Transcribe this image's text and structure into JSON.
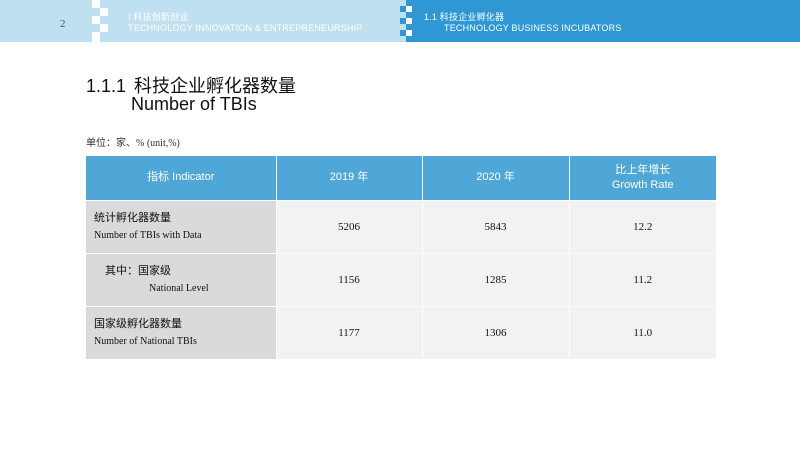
{
  "header": {
    "page_number": "2",
    "left_cn": "I  科技创新创业",
    "left_en": "TECHNOLOGY INNOVATION & ENTREPRENEURSHIP",
    "right_cn": "1.1  科技企业孵化器",
    "right_en": "TECHNOLOGY BUSINESS INCUBATORS",
    "colors": {
      "light_blue": "#bfe0f1",
      "dark_blue": "#2f97d3"
    }
  },
  "title": {
    "number": "1.1.1",
    "cn": "科技企业孵化器数量",
    "en": "Number of TBIs"
  },
  "unit_note": "单位：家、%  (unit,%)",
  "table": {
    "header_color": "#4fa7d7",
    "columns": [
      {
        "line1": "指标 Indicator",
        "line2": ""
      },
      {
        "line1": "2019 年",
        "line2": ""
      },
      {
        "line1": "2020 年",
        "line2": ""
      },
      {
        "line1": "比上年增长",
        "line2": "Growth Rate"
      }
    ],
    "rows": [
      {
        "cn": "统计孵化器数量",
        "en": "Number of TBIs with Data",
        "v2019": "5206",
        "v2020": "5843",
        "growth": "12.2"
      },
      {
        "cn": "其中：国家级",
        "en": "National Level",
        "v2019": "1156",
        "v2020": "1285",
        "growth": "11.2"
      },
      {
        "cn": "国家级孵化器数量",
        "en": "Number of National TBIs",
        "v2019": "1177",
        "v2020": "1306",
        "growth": "11.0"
      }
    ]
  }
}
